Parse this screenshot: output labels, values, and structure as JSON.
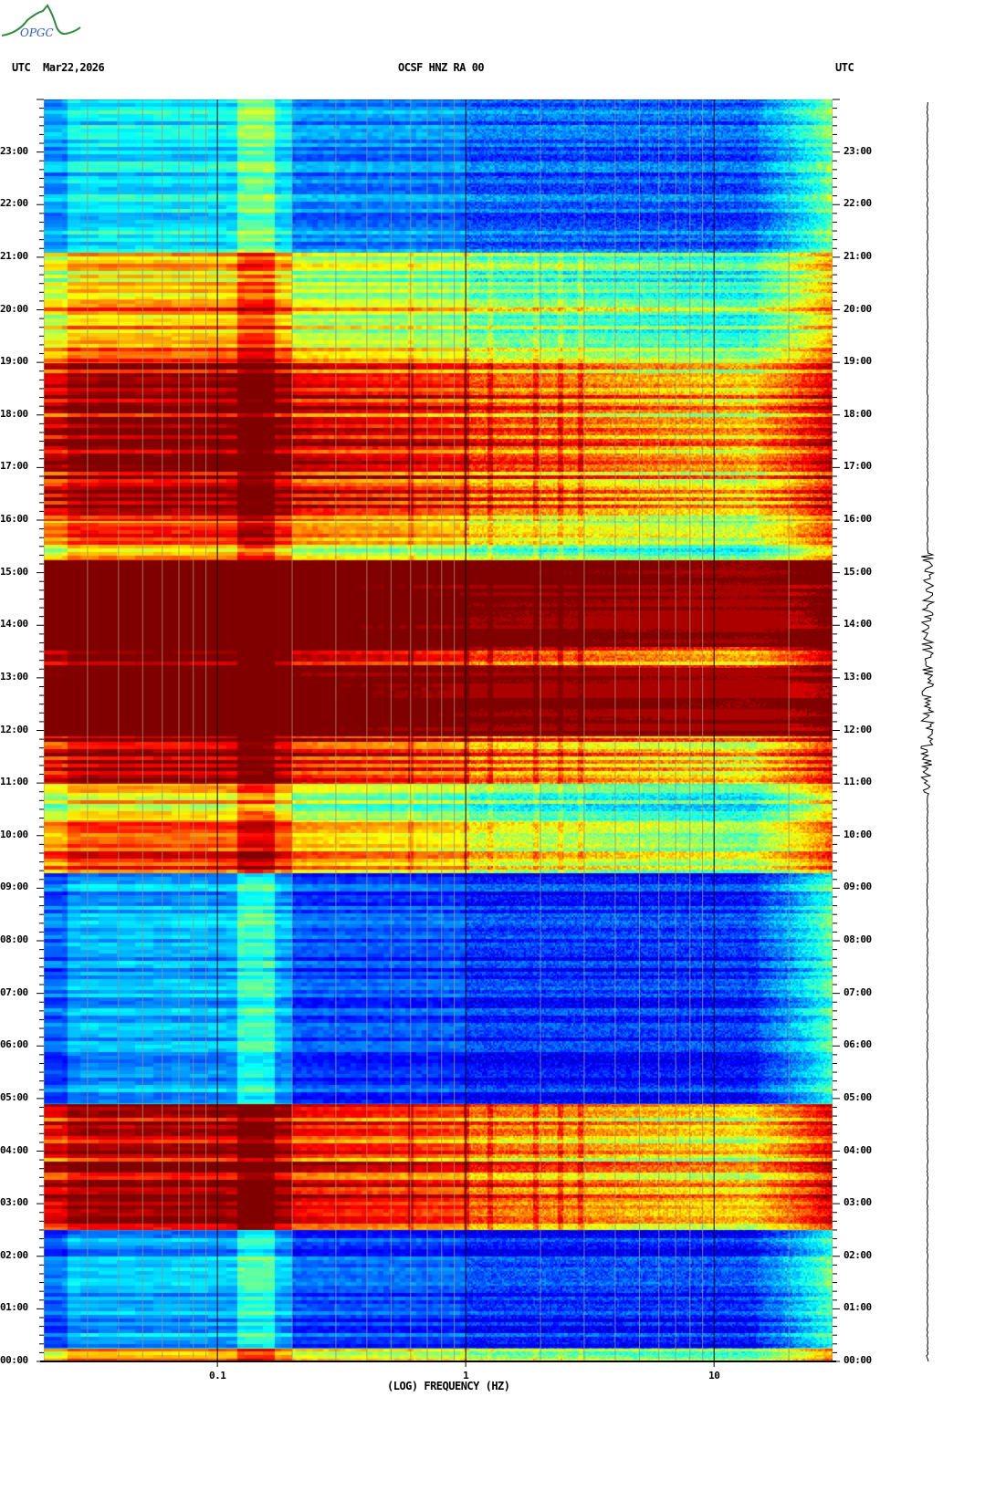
{
  "header": {
    "logo_text": "OPGC",
    "left_label": "UTC",
    "date": "Mar22,2026",
    "station": "OCSF HNZ RA 00",
    "right_label": "UTC"
  },
  "chart_data": {
    "type": "heatmap",
    "title": "OCSF HNZ RA 00",
    "xlabel": "(LOG) FREQUENCY (HZ)",
    "ylabel": "UTC",
    "x_scale": "log",
    "xlim": [
      0.02,
      30
    ],
    "ylim": [
      0,
      24
    ],
    "x_ticks": [
      {
        "value": 0.1,
        "label": "0.1"
      },
      {
        "value": 1,
        "label": "1"
      },
      {
        "value": 10,
        "label": "10"
      }
    ],
    "y_ticks": [
      "00:00",
      "01:00",
      "02:00",
      "03:00",
      "04:00",
      "05:00",
      "06:00",
      "07:00",
      "08:00",
      "09:00",
      "10:00",
      "11:00",
      "12:00",
      "13:00",
      "14:00",
      "15:00",
      "16:00",
      "17:00",
      "18:00",
      "19:00",
      "20:00",
      "21:00",
      "22:00",
      "23:00"
    ],
    "colormap": [
      "#00008c",
      "#0000ff",
      "#00ffff",
      "#ffff00",
      "#ff0000",
      "#800000"
    ],
    "activity_segments_hours": [
      {
        "start": 0.0,
        "end": 0.25,
        "level": 0.45
      },
      {
        "start": 0.25,
        "end": 2.5,
        "level": 0.02
      },
      {
        "start": 2.5,
        "end": 4.9,
        "level": 0.8
      },
      {
        "start": 4.9,
        "end": 9.3,
        "level": 0.0
      },
      {
        "start": 9.3,
        "end": 10.3,
        "level": 0.6
      },
      {
        "start": 10.3,
        "end": 11.0,
        "level": 0.45
      },
      {
        "start": 11.0,
        "end": 11.9,
        "level": 0.8
      },
      {
        "start": 11.9,
        "end": 13.2,
        "level": 1.3
      },
      {
        "start": 13.2,
        "end": 13.6,
        "level": 0.95
      },
      {
        "start": 13.6,
        "end": 15.25,
        "level": 1.3
      },
      {
        "start": 15.25,
        "end": 16.0,
        "level": 0.55
      },
      {
        "start": 16.0,
        "end": 19.0,
        "level": 0.85
      },
      {
        "start": 19.0,
        "end": 20.2,
        "level": 0.55
      },
      {
        "start": 20.2,
        "end": 21.1,
        "level": 0.45
      },
      {
        "start": 21.1,
        "end": 24.0,
        "level": 0.08
      }
    ],
    "spectral_lines_hz": [
      0.6,
      1.0,
      1.25,
      1.9,
      2.4,
      2.9
    ],
    "seismogram_burst_hours": [
      10.8,
      15.4
    ]
  }
}
